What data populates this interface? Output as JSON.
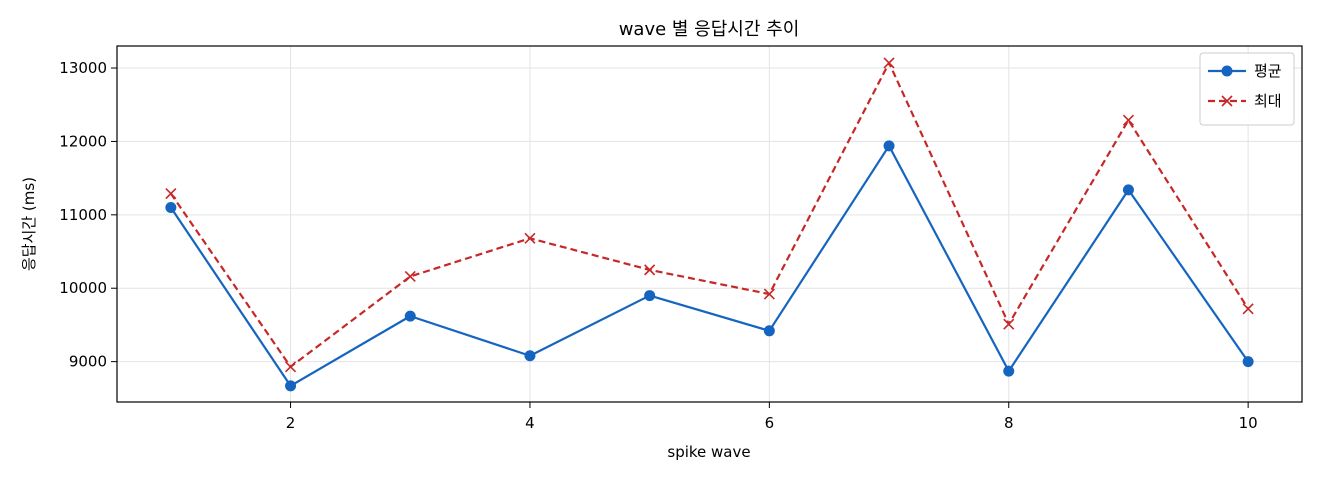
{
  "chart_data": {
    "type": "line",
    "title": "wave 별 응답시간 추이",
    "xlabel": "spike wave",
    "ylabel": "응답시간 (ms)",
    "x": [
      1,
      2,
      3,
      4,
      5,
      6,
      7,
      8,
      9,
      10
    ],
    "xlim": [
      0.55,
      10.45
    ],
    "ylim": [
      8450,
      13300
    ],
    "xticks": [
      2,
      4,
      6,
      8,
      10
    ],
    "yticks": [
      9000,
      10000,
      11000,
      12000,
      13000
    ],
    "grid": true,
    "legend_position": "top-right",
    "series": [
      {
        "name": "평균",
        "color": "#1565c0",
        "line_style": "solid",
        "marker": "circle",
        "values": [
          11100,
          8670,
          9620,
          9080,
          9900,
          9420,
          11940,
          8870,
          11340,
          9000
        ]
      },
      {
        "name": "최대",
        "color": "#c62828",
        "line_style": "dashed",
        "marker": "x",
        "values": [
          11290,
          8930,
          10160,
          10680,
          10250,
          9920,
          13070,
          9510,
          12290,
          9720
        ]
      }
    ]
  }
}
